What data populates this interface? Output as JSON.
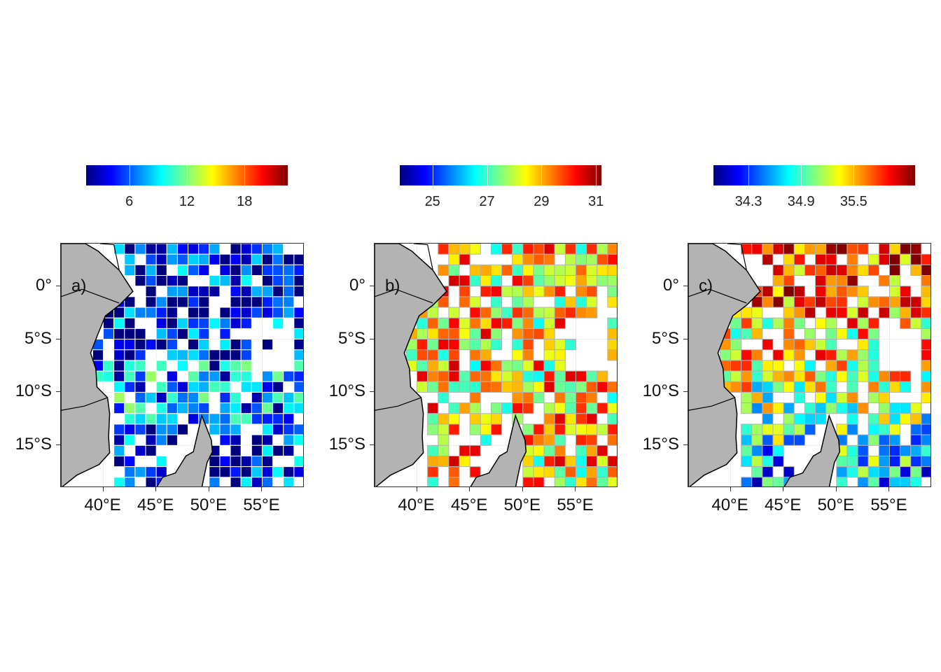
{
  "map": {
    "lon_range": [
      36,
      59
    ],
    "lat_range": [
      -19,
      4
    ],
    "lon_ticks": [
      {
        "value": 40,
        "label": "40°E"
      },
      {
        "value": 45,
        "label": "45°E"
      },
      {
        "value": 50,
        "label": "50°E"
      },
      {
        "value": 55,
        "label": "55°E"
      }
    ],
    "lat_ticks": [
      {
        "value": 0,
        "label": "0°"
      },
      {
        "value": -5,
        "label": "5°S"
      },
      {
        "value": -10,
        "label": "10°S"
      },
      {
        "value": -15,
        "label": "15°S"
      }
    ],
    "land_color": "#b3b3b3",
    "grid_color": "#eeeeee"
  },
  "colormap": [
    "#00007f",
    "#0000ff",
    "#007fff",
    "#00ffff",
    "#7fff7f",
    "#ffff00",
    "#ff7f00",
    "#ff0000",
    "#7f0000"
  ],
  "panels": [
    {
      "label": "a)",
      "colorbar": {
        "min": 1.5,
        "max": 22.5,
        "ticks": [
          {
            "value": 6,
            "label": "6"
          },
          {
            "value": 12,
            "label": "12"
          },
          {
            "value": 18,
            "label": "18"
          }
        ]
      },
      "cell_border": "#ffffff",
      "seed": 11,
      "mean": 4.0
    },
    {
      "label": "b)",
      "colorbar": {
        "min": 23.8,
        "max": 31.2,
        "ticks": [
          {
            "value": 25,
            "label": "25"
          },
          {
            "value": 27,
            "label": "27"
          },
          {
            "value": 29,
            "label": "29"
          },
          {
            "value": 31,
            "label": "31"
          }
        ]
      },
      "cell_border": "#b3b3b3",
      "seed": 23,
      "mean": 28.6
    },
    {
      "label": "c)",
      "colorbar": {
        "min": 33.9,
        "max": 36.2,
        "ticks": [
          {
            "value": 34.3,
            "label": "34.3"
          },
          {
            "value": 34.9,
            "label": "34.9"
          },
          {
            "value": 35.5,
            "label": "35.5"
          }
        ]
      },
      "cell_border": "#b3b3b3",
      "seed": 37,
      "mean": 35.4
    }
  ]
}
